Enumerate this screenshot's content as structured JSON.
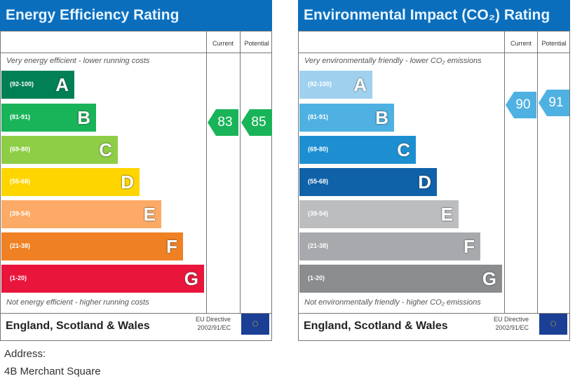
{
  "chart_data": [
    {
      "type": "bar",
      "title": "Energy Efficiency Rating",
      "top_note": "Very energy efficient - lower running costs",
      "bottom_note": "Not energy efficient - higher running costs",
      "columns": [
        "Current",
        "Potential"
      ],
      "bands": [
        {
          "letter": "A",
          "range": "(92-100)",
          "color": "#008054"
        },
        {
          "letter": "B",
          "range": "(81-91)",
          "color": "#19b459"
        },
        {
          "letter": "C",
          "range": "(69-80)",
          "color": "#8dce46"
        },
        {
          "letter": "D",
          "range": "(55-68)",
          "color": "#ffd500"
        },
        {
          "letter": "E",
          "range": "(39-54)",
          "color": "#fcaa65"
        },
        {
          "letter": "F",
          "range": "(21-38)",
          "color": "#ef8023"
        },
        {
          "letter": "G",
          "range": "(1-20)",
          "color": "#e9153b"
        }
      ],
      "current": 83,
      "potential": 85,
      "current_color": "#19b459",
      "potential_color": "#19b459"
    },
    {
      "type": "bar",
      "title": "Environmental Impact (CO₂) Rating",
      "top_note": "Very environmentally friendly - lower CO₂ emissions",
      "bottom_note": "Not environmentally friendly - higher CO₂ emissions",
      "columns": [
        "Current",
        "Potential"
      ],
      "bands": [
        {
          "letter": "A",
          "range": "(92-100)",
          "color": "#9fd1ef"
        },
        {
          "letter": "B",
          "range": "(81-91)",
          "color": "#4fb1e1"
        },
        {
          "letter": "C",
          "range": "(69-80)",
          "color": "#1d8fd1"
        },
        {
          "letter": "D",
          "range": "(55-68)",
          "color": "#0f62a8"
        },
        {
          "letter": "E",
          "range": "(39-54)",
          "color": "#bbbdbf"
        },
        {
          "letter": "F",
          "range": "(21-38)",
          "color": "#a7a9ac"
        },
        {
          "letter": "G",
          "range": "(1-20)",
          "color": "#8a8c8e"
        }
      ],
      "current": 90,
      "potential": 91,
      "current_color": "#4fb1e1",
      "potential_color": "#4fb1e1"
    }
  ],
  "footer": {
    "country": "England, Scotland & Wales",
    "directive_line1": "EU Directive",
    "directive_line2": "2002/91/EC"
  },
  "address": {
    "label": "Address:",
    "value": "4B Merchant Square"
  }
}
